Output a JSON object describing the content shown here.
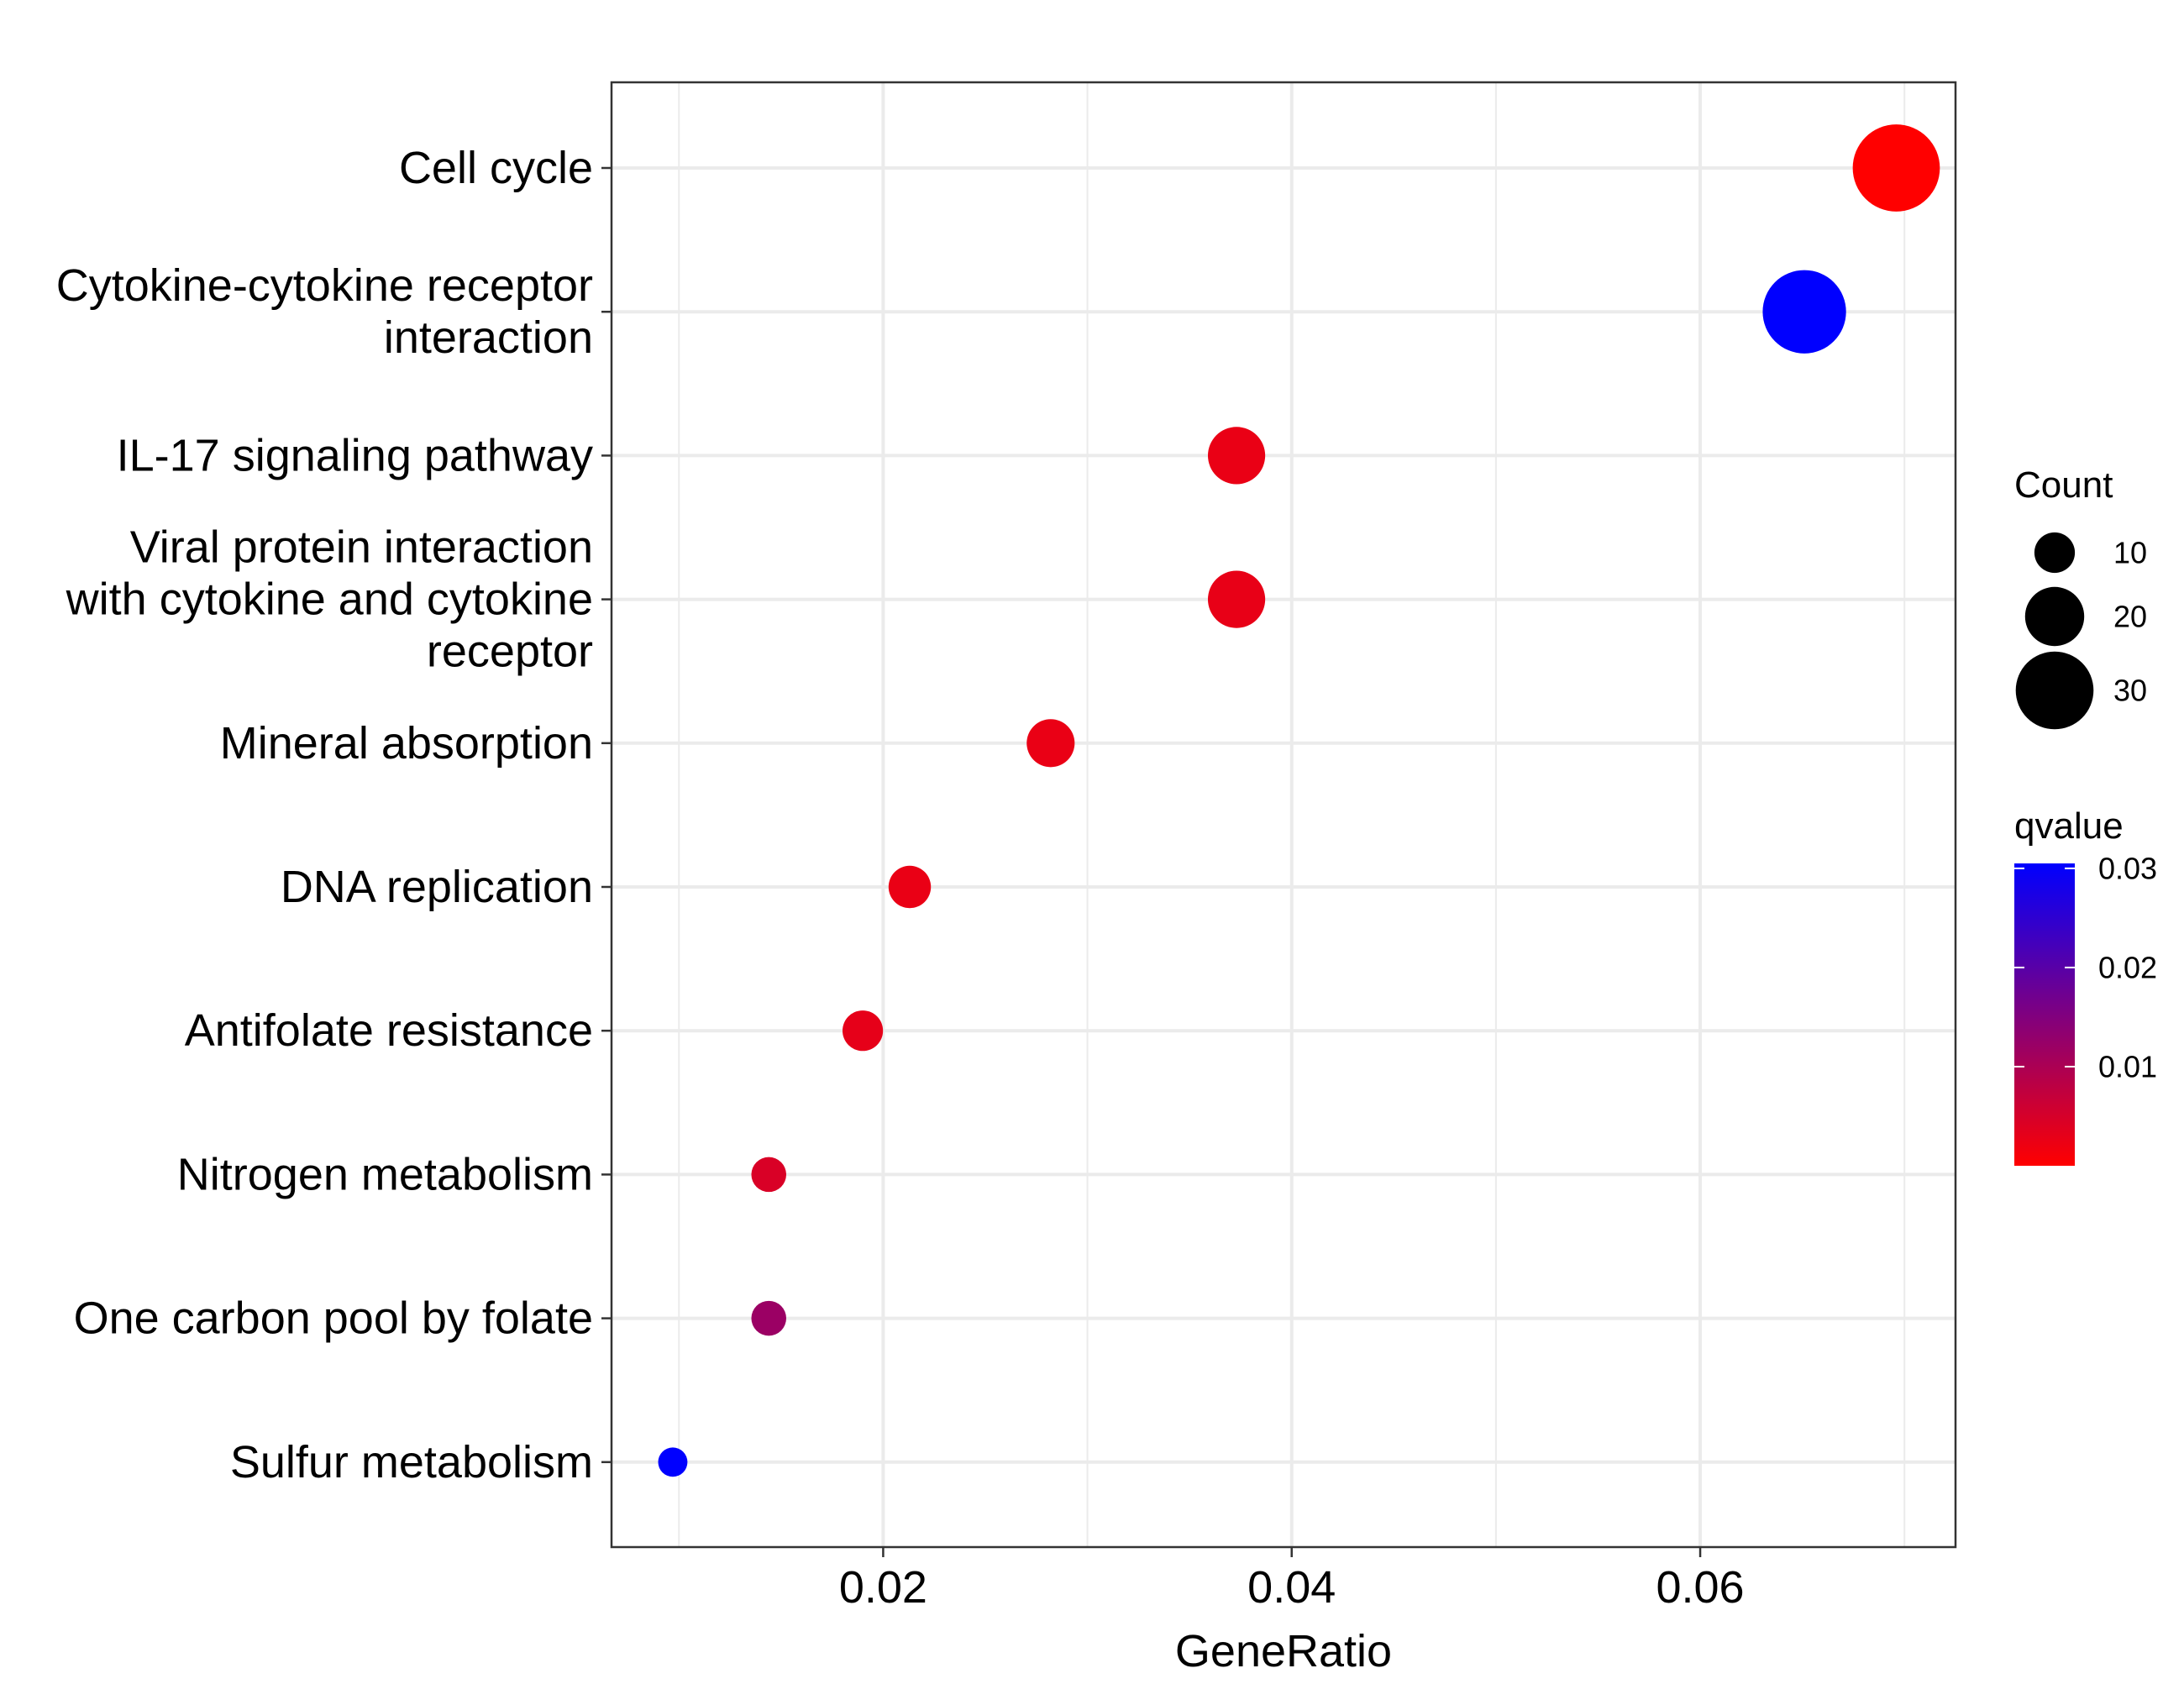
{
  "chart_data": {
    "type": "scatter",
    "xlabel": "GeneRatio",
    "ylabel": "",
    "xlim": [
      0.0067,
      0.0725
    ],
    "x_ticks": [
      0.02,
      0.04,
      0.06
    ],
    "x_tick_labels": [
      "0.02",
      "0.04",
      "0.06"
    ],
    "grid": true,
    "points": [
      {
        "term": "Cell cycle",
        "label_lines": [
          "Cell cycle"
        ],
        "gene_ratio": 0.0696,
        "count": 35,
        "qvalue": 2e-05
      },
      {
        "term": "Cytokine-cytokine receptor interaction",
        "label_lines": [
          "Cytokine-cytokine receptor",
          "interaction"
        ],
        "gene_ratio": 0.0651,
        "count": 33,
        "qvalue": 0.0305
      },
      {
        "term": "IL-17 signaling pathway",
        "label_lines": [
          "IL-17 signaling pathway"
        ],
        "gene_ratio": 0.0373,
        "count": 19,
        "qvalue": 0.0025
      },
      {
        "term": "Viral protein interaction with cytokine and cytokine receptor",
        "label_lines": [
          "Viral protein interaction",
          "with cytokine and cytokine",
          "receptor"
        ],
        "gene_ratio": 0.0373,
        "count": 19,
        "qvalue": 0.0028
      },
      {
        "term": "Mineral absorption",
        "label_lines": [
          "Mineral absorption"
        ],
        "gene_ratio": 0.0282,
        "count": 14,
        "qvalue": 0.0025
      },
      {
        "term": "DNA replication",
        "label_lines": [
          "DNA replication"
        ],
        "gene_ratio": 0.0213,
        "count": 11,
        "qvalue": 0.0025
      },
      {
        "term": "Antifolate resistance",
        "label_lines": [
          "Antifolate resistance"
        ],
        "gene_ratio": 0.019,
        "count": 10,
        "qvalue": 0.003
      },
      {
        "term": "Nitrogen metabolism",
        "label_lines": [
          "Nitrogen metabolism"
        ],
        "gene_ratio": 0.0144,
        "count": 7,
        "qvalue": 0.0045
      },
      {
        "term": "One carbon pool by folate",
        "label_lines": [
          "One carbon pool by folate"
        ],
        "gene_ratio": 0.0144,
        "count": 7,
        "qvalue": 0.012
      },
      {
        "term": "Sulfur metabolism",
        "label_lines": [
          "Sulfur metabolism"
        ],
        "gene_ratio": 0.0097,
        "count": 4,
        "qvalue": 0.0305
      }
    ],
    "size_legend": {
      "title": "Count",
      "entries": [
        {
          "label": "10",
          "value": 10
        },
        {
          "label": "20",
          "value": 20
        },
        {
          "label": "30",
          "value": 30
        }
      ]
    },
    "color_legend": {
      "title": "qvalue",
      "low_color": "#ff0000",
      "high_color": "#0000ff",
      "range": [
        0.0,
        0.0305
      ],
      "ticks": [
        {
          "label": "0.01",
          "value": 0.01
        },
        {
          "label": "0.02",
          "value": 0.02
        },
        {
          "label": "0.03",
          "value": 0.03
        }
      ]
    },
    "legend_position": "right",
    "colors": {
      "grid": "#ebebeb",
      "panel_border": "#333333",
      "background": "#ffffff"
    }
  }
}
